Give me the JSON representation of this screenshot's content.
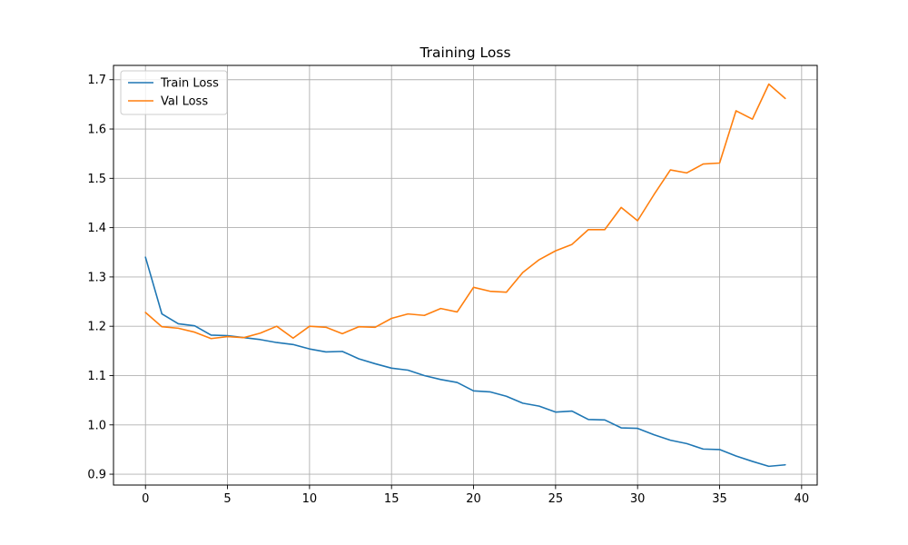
{
  "chart_data": {
    "type": "line",
    "title": "Training Loss",
    "xlabel": "",
    "ylabel": "",
    "xlim": [
      -1.95,
      40.95
    ],
    "ylim": [
      0.878,
      1.729
    ],
    "x_ticks": [
      0,
      5,
      10,
      15,
      20,
      25,
      30,
      35,
      40
    ],
    "y_ticks": [
      0.9,
      1.0,
      1.1,
      1.2,
      1.3,
      1.4,
      1.5,
      1.6,
      1.7
    ],
    "y_tick_labels": [
      "0.9",
      "1.0",
      "1.1",
      "1.2",
      "1.3",
      "1.4",
      "1.5",
      "1.6",
      "1.7"
    ],
    "grid": true,
    "legend": "top-left",
    "x": [
      0,
      1,
      2,
      3,
      4,
      5,
      6,
      7,
      8,
      9,
      10,
      11,
      12,
      13,
      14,
      15,
      16,
      17,
      18,
      19,
      20,
      21,
      22,
      23,
      24,
      25,
      26,
      27,
      28,
      29,
      30,
      31,
      32,
      33,
      34,
      35,
      36,
      37,
      38,
      39
    ],
    "series": [
      {
        "name": "Train Loss",
        "color": "#1f77b4",
        "values": [
          1.34,
          1.225,
          1.205,
          1.201,
          1.182,
          1.181,
          1.177,
          1.173,
          1.167,
          1.163,
          1.154,
          1.148,
          1.149,
          1.134,
          1.124,
          1.115,
          1.111,
          1.1,
          1.092,
          1.086,
          1.069,
          1.067,
          1.058,
          1.044,
          1.038,
          1.026,
          1.028,
          1.011,
          1.01,
          0.994,
          0.993,
          0.98,
          0.969,
          0.962,
          0.951,
          0.95,
          0.937,
          0.926,
          0.916,
          0.919
        ]
      },
      {
        "name": "Val Loss",
        "color": "#ff7f0e",
        "values": [
          1.228,
          1.199,
          1.196,
          1.188,
          1.175,
          1.179,
          1.177,
          1.186,
          1.2,
          1.176,
          1.2,
          1.198,
          1.185,
          1.199,
          1.198,
          1.216,
          1.225,
          1.222,
          1.236,
          1.229,
          1.279,
          1.271,
          1.269,
          1.309,
          1.335,
          1.353,
          1.366,
          1.396,
          1.396,
          1.441,
          1.414,
          1.467,
          1.517,
          1.511,
          1.529,
          1.531,
          1.637,
          1.62,
          1.691,
          1.662
        ]
      }
    ]
  }
}
